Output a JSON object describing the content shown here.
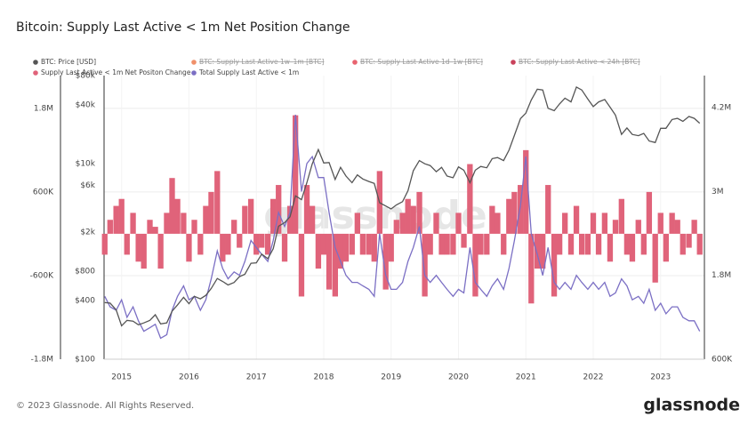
{
  "chart_data": {
    "type": "bar-line",
    "title": "Bitcoin: Supply Last Active < 1m Net Position Change",
    "watermark": "glassnode",
    "footer": "© 2023 Glassnode. All Rights Reserved.",
    "brand": "glassnode",
    "hidden_series": [
      {
        "name": "BTC: Supply Last Active 1w–1m [BTC]",
        "color": "#f0906a"
      },
      {
        "name": "BTC: Supply Last Active 1d–1w [BTC]",
        "color": "#e8636f"
      },
      {
        "name": "BTC: Supply Last Active < 24h [BTC]",
        "color": "#c9415b"
      }
    ],
    "x": [
      2014.75,
      2014.83,
      2014.92,
      2015,
      2015.08,
      2015.17,
      2015.25,
      2015.33,
      2015.42,
      2015.5,
      2015.58,
      2015.67,
      2015.75,
      2015.83,
      2015.92,
      2016,
      2016.08,
      2016.17,
      2016.25,
      2016.33,
      2016.42,
      2016.5,
      2016.58,
      2016.67,
      2016.75,
      2016.83,
      2016.92,
      2017,
      2017.08,
      2017.17,
      2017.25,
      2017.33,
      2017.42,
      2017.5,
      2017.58,
      2017.67,
      2017.75,
      2017.83,
      2017.92,
      2018,
      2018.08,
      2018.17,
      2018.25,
      2018.33,
      2018.42,
      2018.5,
      2018.58,
      2018.67,
      2018.75,
      2018.83,
      2018.92,
      2019,
      2019.08,
      2019.17,
      2019.25,
      2019.33,
      2019.42,
      2019.5,
      2019.58,
      2019.67,
      2019.75,
      2019.83,
      2019.92,
      2020,
      2020.08,
      2020.17,
      2020.25,
      2020.33,
      2020.42,
      2020.5,
      2020.58,
      2020.67,
      2020.75,
      2020.83,
      2020.92,
      2021,
      2021.08,
      2021.17,
      2021.25,
      2021.33,
      2021.42,
      2021.5,
      2021.58,
      2021.67,
      2021.75,
      2021.83,
      2021.92,
      2022,
      2022.08,
      2022.17,
      2022.25,
      2022.33,
      2022.42,
      2022.5,
      2022.58,
      2022.67,
      2022.75,
      2022.83,
      2022.92,
      2023,
      2023.08,
      2023.17,
      2023.25,
      2023.33,
      2023.42,
      2023.5,
      2023.58
    ],
    "xlim": [
      2014.74,
      2023.65
    ],
    "xticks": [
      2015,
      2016,
      2017,
      2018,
      2019,
      2020,
      2021,
      2022,
      2023
    ],
    "ylim": [
      -1800000,
      2270000
    ],
    "yticks": [
      {
        "value": 1800000,
        "label": "1.8M"
      },
      {
        "value": 600000,
        "label": "600K"
      },
      {
        "value": -600000,
        "label": "-600K"
      },
      {
        "value": -1800000,
        "label": "-1.8M"
      }
    ],
    "y2lim": [
      600000,
      4660000
    ],
    "y2ticks": [
      {
        "value": 4200000,
        "label": "4.2M"
      },
      {
        "value": 3000000,
        "label": "3M"
      },
      {
        "value": 1800000,
        "label": "1.8M"
      },
      {
        "value": 600000,
        "label": "600K"
      }
    ],
    "y3lim": [
      100,
      80000
    ],
    "y3log": true,
    "y3ticks": [
      {
        "value": 80000,
        "label": "$80k"
      },
      {
        "value": 40000,
        "label": "$40k"
      },
      {
        "value": 10000,
        "label": "$10k"
      },
      {
        "value": 6000,
        "label": "$6k"
      },
      {
        "value": 2000,
        "label": "$2k"
      },
      {
        "value": 800,
        "label": "$800"
      },
      {
        "value": 400,
        "label": "$400"
      },
      {
        "value": 100,
        "label": "$100"
      }
    ],
    "grid": true,
    "series": [
      {
        "name": "BTC: Price [USD]",
        "color": "#555555",
        "kind": "line",
        "axis": "y3",
        "values": [
          380,
          375,
          320,
          220,
          250,
          245,
          225,
          235,
          250,
          285,
          230,
          235,
          310,
          360,
          430,
          370,
          440,
          415,
          450,
          530,
          670,
          625,
          575,
          610,
          700,
          740,
          960,
          970,
          1190,
          1070,
          1350,
          2300,
          2500,
          2870,
          4700,
          4300,
          6400,
          10000,
          14000,
          10200,
          10300,
          6900,
          9200,
          7500,
          6400,
          7700,
          7000,
          6600,
          6300,
          4000,
          3700,
          3450,
          3800,
          4100,
          5300,
          8500,
          10800,
          10000,
          9600,
          8300,
          9200,
          7500,
          7200,
          9300,
          8600,
          6400,
          8600,
          9400,
          9100,
          11300,
          11600,
          10800,
          13800,
          19600,
          29000,
          33000,
          45000,
          58000,
          57000,
          37000,
          35000,
          41000,
          47000,
          43000,
          61000,
          57000,
          46000,
          38500,
          43000,
          45500,
          38000,
          31500,
          20000,
          23300,
          20000,
          19400,
          20500,
          17100,
          16500,
          23100,
          23100,
          28400,
          29200,
          27200,
          30500,
          29200,
          26000
        ]
      },
      {
        "name": "Supply Last Active < 1m Net Positon Change",
        "color": "#e0637a",
        "kind": "bar",
        "axis": "y",
        "values": [
          -300000,
          200000,
          400000,
          500000,
          -300000,
          300000,
          -400000,
          -500000,
          200000,
          100000,
          -500000,
          300000,
          800000,
          500000,
          300000,
          -400000,
          200000,
          -300000,
          400000,
          600000,
          900000,
          -400000,
          -300000,
          200000,
          -200000,
          400000,
          500000,
          -300000,
          -200000,
          -300000,
          500000,
          700000,
          -400000,
          400000,
          1700000,
          -900000,
          700000,
          400000,
          -500000,
          -300000,
          -800000,
          -900000,
          -500000,
          -400000,
          -300000,
          300000,
          -300000,
          -300000,
          -400000,
          900000,
          -800000,
          -400000,
          200000,
          300000,
          500000,
          400000,
          600000,
          -900000,
          -300000,
          300000,
          -300000,
          -300000,
          -300000,
          300000,
          -200000,
          1000000,
          -900000,
          -300000,
          -300000,
          400000,
          300000,
          -300000,
          500000,
          600000,
          700000,
          1200000,
          -1000000,
          -500000,
          -500000,
          700000,
          -900000,
          -300000,
          300000,
          -300000,
          400000,
          -300000,
          -300000,
          300000,
          -300000,
          300000,
          -400000,
          200000,
          500000,
          -300000,
          -400000,
          200000,
          -300000,
          600000,
          -700000,
          300000,
          -400000,
          300000,
          200000,
          -300000,
          -200000,
          200000,
          -300000
        ]
      },
      {
        "name": "Total Supply Last Active < 1m",
        "color": "#7b6fc4",
        "kind": "line",
        "axis": "y2",
        "values": [
          1500000,
          1350000,
          1300000,
          1450000,
          1200000,
          1350000,
          1150000,
          1000000,
          1050000,
          1100000,
          900000,
          950000,
          1300000,
          1500000,
          1650000,
          1450000,
          1500000,
          1300000,
          1450000,
          1750000,
          2150000,
          1900000,
          1750000,
          1850000,
          1800000,
          2000000,
          2300000,
          2200000,
          2100000,
          2000000,
          2300000,
          2700000,
          2500000,
          2700000,
          4100000,
          3000000,
          3400000,
          3500000,
          3200000,
          3200000,
          2700000,
          2200000,
          2000000,
          1800000,
          1700000,
          1700000,
          1650000,
          1600000,
          1500000,
          2400000,
          1800000,
          1600000,
          1600000,
          1700000,
          2000000,
          2200000,
          2500000,
          1800000,
          1700000,
          1800000,
          1700000,
          1600000,
          1500000,
          1600000,
          1550000,
          2200000,
          1700000,
          1600000,
          1500000,
          1650000,
          1750000,
          1600000,
          1900000,
          2300000,
          2800000,
          3500000,
          2400000,
          2100000,
          1800000,
          2200000,
          1700000,
          1600000,
          1700000,
          1600000,
          1800000,
          1700000,
          1600000,
          1700000,
          1600000,
          1700000,
          1500000,
          1550000,
          1750000,
          1650000,
          1450000,
          1500000,
          1400000,
          1600000,
          1300000,
          1400000,
          1250000,
          1350000,
          1350000,
          1200000,
          1150000,
          1150000,
          1000000
        ]
      }
    ]
  }
}
